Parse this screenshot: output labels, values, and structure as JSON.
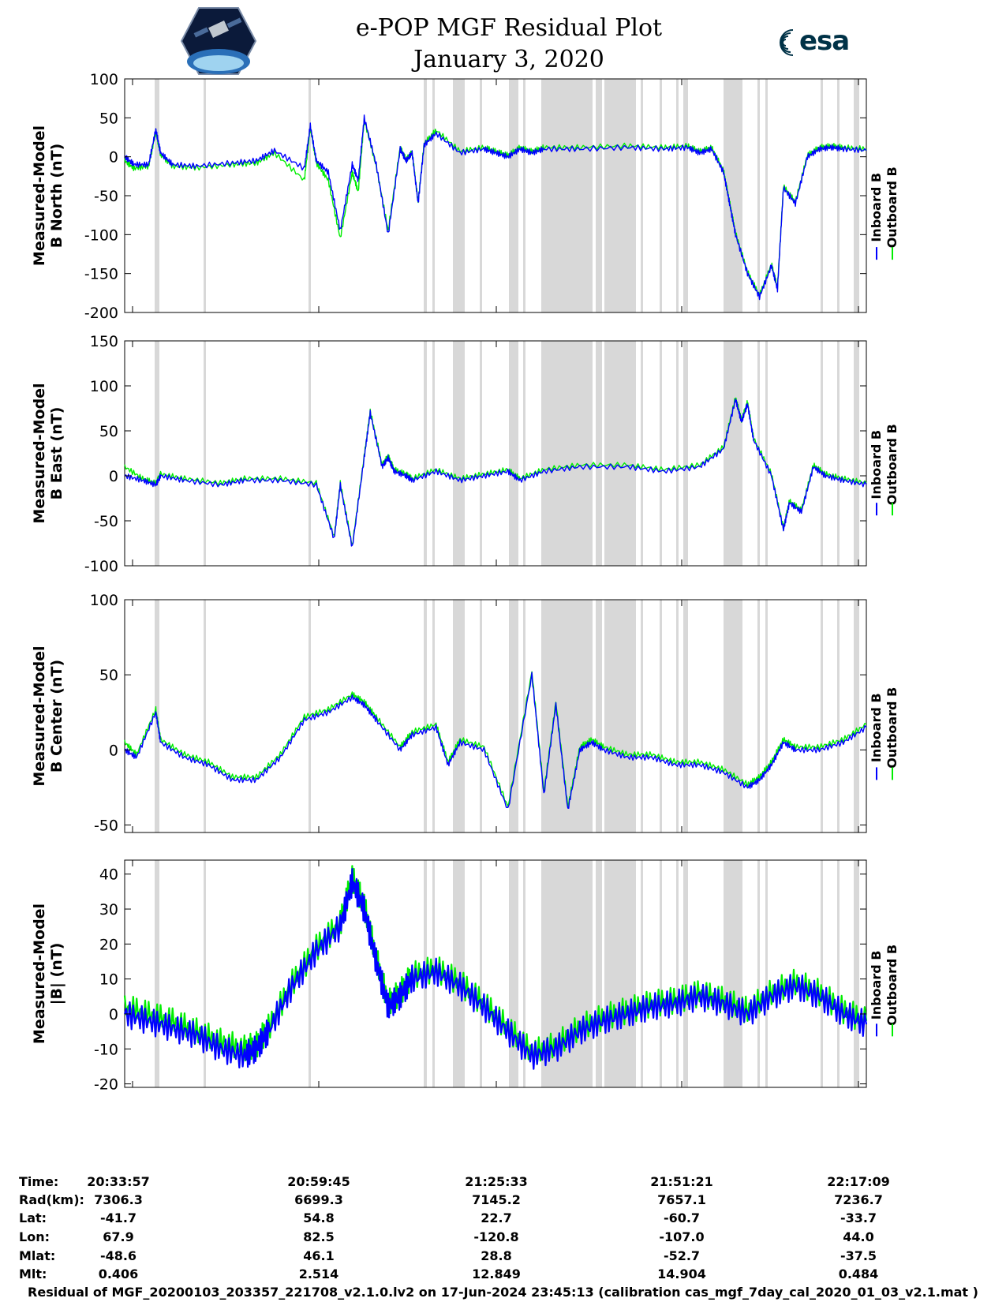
{
  "title": {
    "line1": "e-POP MGF Residual Plot",
    "line2": "January 3, 2020"
  },
  "logos": {
    "left": "cassiope-logo",
    "right_text": "esa",
    "right_color": "#003247"
  },
  "colors": {
    "inboard": "#0000ff",
    "outboard": "#00ee00",
    "gap_shading": "#d8d8d8"
  },
  "legend": {
    "inboard": "Inboard B",
    "outboard": "Outboard B"
  },
  "chart_data": [
    {
      "type": "line",
      "ylabel": [
        "Measured-Model",
        "B North (nT)"
      ],
      "ylim": [
        -200,
        100
      ],
      "yticks": [
        100,
        50,
        0,
        -50,
        -100,
        -150,
        -200
      ],
      "xlim": [
        0,
        6192
      ],
      "xticks": [
        "20:33:57",
        "20:59:45",
        "21:25:33",
        "21:51:21",
        "22:17:09"
      ],
      "grid": false,
      "series": [
        {
          "name": "Inboard B",
          "x": [
            0,
            80,
            200,
            260,
            300,
            400,
            600,
            900,
            1100,
            1250,
            1500,
            1550,
            1600,
            1700,
            1800,
            1900,
            1950,
            2000,
            2100,
            2200,
            2300,
            2350,
            2400,
            2450,
            2500,
            2600,
            2800,
            3000,
            3100,
            3200,
            3300,
            3400,
            3500,
            3800,
            4200,
            4500,
            4700,
            4800,
            4900,
            5000,
            5050,
            5100,
            5200,
            5300,
            5400,
            5450,
            5500,
            5600,
            5700,
            5800,
            5900,
            6000,
            6192
          ],
          "values": [
            0,
            -10,
            -10,
            35,
            5,
            -10,
            -12,
            -8,
            -5,
            8,
            -15,
            40,
            -5,
            -20,
            -95,
            -10,
            -30,
            50,
            -10,
            -100,
            10,
            -5,
            5,
            -60,
            15,
            30,
            5,
            10,
            5,
            0,
            10,
            5,
            10,
            10,
            12,
            10,
            12,
            5,
            10,
            -20,
            -60,
            -100,
            -150,
            -180,
            -140,
            -170,
            -40,
            -60,
            0,
            10,
            12,
            10,
            8
          ]
        },
        {
          "name": "Outboard B",
          "x": [
            0,
            80,
            200,
            260,
            300,
            400,
            600,
            900,
            1100,
            1250,
            1500,
            1550,
            1600,
            1700,
            1800,
            1900,
            1950,
            2000,
            2100,
            2200,
            2300,
            2350,
            2400,
            2450,
            2500,
            2600,
            2800,
            3000,
            3100,
            3200,
            3300,
            3400,
            3500,
            3800,
            4200,
            4500,
            4700,
            4800,
            4900,
            5000,
            5050,
            5100,
            5200,
            5300,
            5400,
            5450,
            5500,
            5600,
            5700,
            5800,
            5900,
            6000,
            6192
          ],
          "values": [
            -5,
            -15,
            -12,
            32,
            3,
            -12,
            -14,
            -10,
            -8,
            5,
            -30,
            38,
            -8,
            -30,
            -105,
            -20,
            -45,
            48,
            -12,
            -95,
            12,
            -4,
            6,
            -58,
            17,
            34,
            7,
            12,
            7,
            2,
            12,
            7,
            12,
            12,
            14,
            12,
            14,
            7,
            12,
            -18,
            -58,
            -98,
            -148,
            -178,
            -138,
            -168,
            -38,
            -58,
            2,
            12,
            14,
            12,
            10
          ]
        }
      ]
    },
    {
      "type": "line",
      "ylabel": [
        "Measured-Model",
        "B East (nT)"
      ],
      "ylim": [
        -100,
        150
      ],
      "yticks": [
        150,
        100,
        50,
        0,
        -50,
        -100
      ],
      "xlim": [
        0,
        6192
      ],
      "xticks": [
        "20:33:57",
        "20:59:45",
        "21:25:33",
        "21:51:21",
        "22:17:09"
      ],
      "grid": false,
      "series": [
        {
          "name": "Inboard B",
          "x": [
            0,
            150,
            260,
            300,
            500,
            800,
            1000,
            1300,
            1600,
            1750,
            1800,
            1900,
            2000,
            2050,
            2150,
            2200,
            2250,
            2350,
            2400,
            2600,
            2800,
            3000,
            3200,
            3300,
            3500,
            3800,
            4200,
            4500,
            4800,
            5000,
            5100,
            5150,
            5200,
            5250,
            5400,
            5500,
            5550,
            5650,
            5750,
            5850,
            6000,
            6192
          ],
          "values": [
            0,
            -5,
            -10,
            0,
            -5,
            -10,
            -5,
            -5,
            -10,
            -70,
            -10,
            -80,
            20,
            70,
            10,
            20,
            5,
            0,
            -5,
            5,
            -5,
            0,
            5,
            -5,
            5,
            10,
            10,
            5,
            10,
            30,
            85,
            60,
            80,
            40,
            0,
            -60,
            -30,
            -40,
            10,
            0,
            -5,
            -10
          ]
        },
        {
          "name": "Outboard B",
          "x": [
            0,
            150,
            260,
            300,
            500,
            800,
            1000,
            1300,
            1600,
            1750,
            1800,
            1900,
            2000,
            2050,
            2150,
            2200,
            2250,
            2350,
            2400,
            2600,
            2800,
            3000,
            3200,
            3300,
            3500,
            3800,
            4200,
            4500,
            4800,
            5000,
            5100,
            5150,
            5200,
            5250,
            5400,
            5500,
            5550,
            5650,
            5750,
            5850,
            6000,
            6192
          ],
          "values": [
            10,
            -3,
            -8,
            2,
            -3,
            -8,
            -3,
            -3,
            -8,
            -68,
            -8,
            -78,
            22,
            72,
            12,
            22,
            7,
            2,
            -3,
            7,
            -3,
            2,
            7,
            -3,
            7,
            12,
            12,
            7,
            12,
            32,
            87,
            62,
            82,
            42,
            2,
            -58,
            -28,
            -38,
            12,
            2,
            -3,
            -8
          ]
        }
      ]
    },
    {
      "type": "line",
      "ylabel": [
        "Measured-Model",
        "B Center (nT)"
      ],
      "ylim": [
        -55,
        100
      ],
      "yticks": [
        100,
        50,
        0,
        -50
      ],
      "xlim": [
        0,
        6192
      ],
      "xticks": [
        "20:33:57",
        "20:59:45",
        "21:25:33",
        "21:51:21",
        "22:17:09"
      ],
      "grid": false,
      "series": [
        {
          "name": "Inboard B",
          "x": [
            0,
            100,
            260,
            300,
            500,
            700,
            900,
            1100,
            1300,
            1500,
            1700,
            1900,
            2000,
            2100,
            2300,
            2400,
            2600,
            2700,
            2800,
            3000,
            3200,
            3400,
            3500,
            3600,
            3700,
            3800,
            3900,
            4000,
            4200,
            4400,
            4600,
            4800,
            5000,
            5200,
            5300,
            5400,
            5500,
            5600,
            5800,
            6000,
            6192
          ],
          "values": [
            0,
            -5,
            25,
            5,
            -5,
            -10,
            -20,
            -20,
            -5,
            20,
            25,
            35,
            30,
            20,
            0,
            10,
            15,
            -10,
            5,
            0,
            -40,
            50,
            -30,
            30,
            -40,
            0,
            5,
            0,
            -5,
            -5,
            -10,
            -10,
            -15,
            -25,
            -20,
            -10,
            5,
            0,
            0,
            5,
            15
          ]
        },
        {
          "name": "Outboard B",
          "x": [
            0,
            100,
            260,
            300,
            500,
            700,
            900,
            1100,
            1300,
            1500,
            1700,
            1900,
            2000,
            2100,
            2300,
            2400,
            2600,
            2700,
            2800,
            3000,
            3200,
            3400,
            3500,
            3600,
            3700,
            3800,
            3900,
            4000,
            4200,
            4400,
            4600,
            4800,
            5000,
            5200,
            5300,
            5400,
            5500,
            5600,
            5800,
            6000,
            6192
          ],
          "values": [
            5,
            -3,
            27,
            7,
            -3,
            -8,
            -18,
            -18,
            -3,
            22,
            27,
            37,
            32,
            22,
            2,
            12,
            17,
            -8,
            7,
            2,
            -38,
            52,
            -28,
            32,
            -38,
            2,
            7,
            2,
            -3,
            -3,
            -8,
            -8,
            -13,
            -23,
            -18,
            -8,
            7,
            2,
            2,
            7,
            17
          ]
        }
      ]
    },
    {
      "type": "line",
      "ylabel": [
        "Measured-Model",
        "|B| (nT)"
      ],
      "ylim": [
        -21,
        44
      ],
      "yticks": [
        40,
        30,
        20,
        10,
        0,
        -10,
        -20
      ],
      "xlim": [
        0,
        6192
      ],
      "xticks": [
        "20:33:57",
        "20:59:45",
        "21:25:33",
        "21:51:21",
        "22:17:09"
      ],
      "grid": false,
      "series": [
        {
          "name": "Inboard B",
          "x": [
            0,
            200,
            400,
            600,
            800,
            1000,
            1100,
            1200,
            1400,
            1600,
            1800,
            1900,
            2000,
            2100,
            2200,
            2300,
            2400,
            2600,
            2800,
            3000,
            3200,
            3400,
            3600,
            3800,
            4000,
            4200,
            4400,
            4600,
            4800,
            5000,
            5200,
            5400,
            5600,
            5800,
            6000,
            6192
          ],
          "values": [
            0,
            -2,
            -4,
            -6,
            -10,
            -12,
            -10,
            -5,
            8,
            18,
            25,
            38,
            30,
            15,
            2,
            5,
            10,
            12,
            8,
            2,
            -5,
            -12,
            -10,
            -5,
            -2,
            0,
            2,
            3,
            5,
            3,
            0,
            5,
            8,
            5,
            0,
            -3
          ]
        },
        {
          "name": "Outboard B",
          "x": [
            0,
            200,
            400,
            600,
            800,
            1000,
            1100,
            1200,
            1400,
            1600,
            1800,
            1900,
            2000,
            2100,
            2200,
            2300,
            2400,
            2600,
            2800,
            3000,
            3200,
            3400,
            3600,
            3800,
            4000,
            4200,
            4400,
            4600,
            4800,
            5000,
            5200,
            5400,
            5600,
            5800,
            6000,
            6192
          ],
          "values": [
            2,
            0,
            -2,
            -5,
            -8,
            -10,
            -9,
            -4,
            9,
            19,
            26,
            39,
            31,
            16,
            3,
            6,
            11,
            13,
            9,
            3,
            -4,
            -11,
            -9,
            -4,
            -1,
            1,
            3,
            4,
            6,
            4,
            1,
            6,
            9,
            6,
            1,
            -2
          ]
        }
      ]
    }
  ],
  "info_table": {
    "labels": [
      "Time:",
      "Rad(km):",
      "Lat:",
      "Lon:",
      "Mlat:",
      "Mlt:"
    ],
    "columns": [
      [
        "20:33:57",
        "7306.3",
        "-41.7",
        "67.9",
        "-48.6",
        "0.406"
      ],
      [
        "20:59:45",
        "6699.3",
        "54.8",
        "82.5",
        "46.1",
        "2.514"
      ],
      [
        "21:25:33",
        "7145.2",
        "22.7",
        "-120.8",
        "28.8",
        "12.849"
      ],
      [
        "21:51:21",
        "7657.1",
        "-60.7",
        "-107.0",
        "-52.7",
        "14.904"
      ],
      [
        "22:17:09",
        "7236.7",
        "-33.7",
        "44.0",
        "-37.5",
        "0.484"
      ]
    ]
  },
  "footer": "Residual of MGF_20200103_203357_221708_v2.1.0.lv2 on 17-Jun-2024 23:45:13 (calibration cas_mgf_7day_cal_2020_01_03_v2.1.mat )"
}
